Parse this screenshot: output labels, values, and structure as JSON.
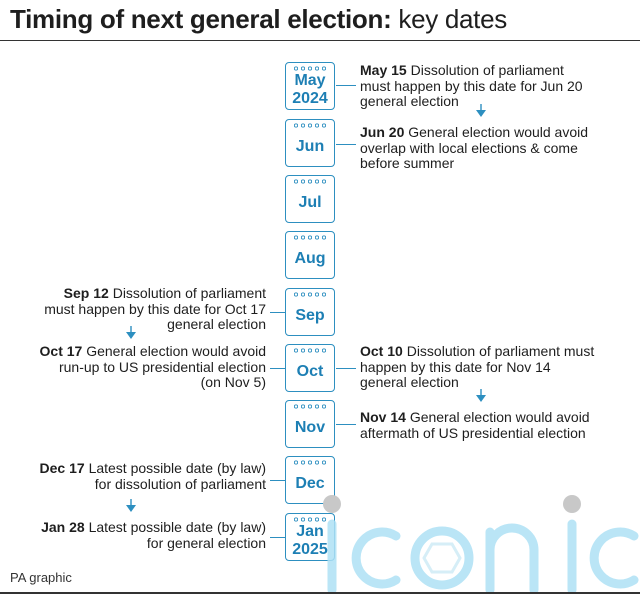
{
  "title": {
    "bold": "Timing of next general election:",
    "light": "key dates"
  },
  "months": [
    {
      "month": "May",
      "year": "2024"
    },
    {
      "month": "Jun",
      "year": ""
    },
    {
      "month": "Jul",
      "year": ""
    },
    {
      "month": "Aug",
      "year": ""
    },
    {
      "month": "Sep",
      "year": ""
    },
    {
      "month": "Oct",
      "year": ""
    },
    {
      "month": "Nov",
      "year": ""
    },
    {
      "month": "Dec",
      "year": ""
    },
    {
      "month": "Jan",
      "year": "2025"
    }
  ],
  "events": {
    "may15": {
      "date": "May 15",
      "line1": "Dissolution of parliament",
      "line2": "must happen by this date for Jun 20",
      "line3": "general election"
    },
    "jun20": {
      "date": "Jun 20",
      "line1": "General election would avoid",
      "line2": "overlap with local elections & come",
      "line3": "before summer"
    },
    "sep12": {
      "date": "Sep 12",
      "line1": "Dissolution of parliament",
      "line2": "must happen by this date for Oct 17",
      "line3": "general election"
    },
    "oct17": {
      "date": "Oct 17",
      "line1": "General election would avoid",
      "line2": "run-up to US presidential election",
      "line3": "(on Nov 5)"
    },
    "oct10": {
      "date": "Oct 10",
      "line1": "Dissolution of parliament must",
      "line2": "happen by this date for Nov 14",
      "line3": "general election"
    },
    "nov14": {
      "date": "Nov 14",
      "line1": "General election would avoid",
      "line2": "aftermath of US presidential election"
    },
    "dec17": {
      "date": "Dec 17",
      "line1": "Latest possible date (by law)",
      "line2": "for dissolution of parliament"
    },
    "jan28": {
      "date": "Jan 28",
      "line1": "Latest possible date (by law)",
      "line2": "for general election"
    }
  },
  "footer": "PA graphic",
  "watermark": "iconic",
  "colors": {
    "accent": "#2d8fc0",
    "text": "#1e1e1e",
    "watermark": "#aee1f5"
  }
}
